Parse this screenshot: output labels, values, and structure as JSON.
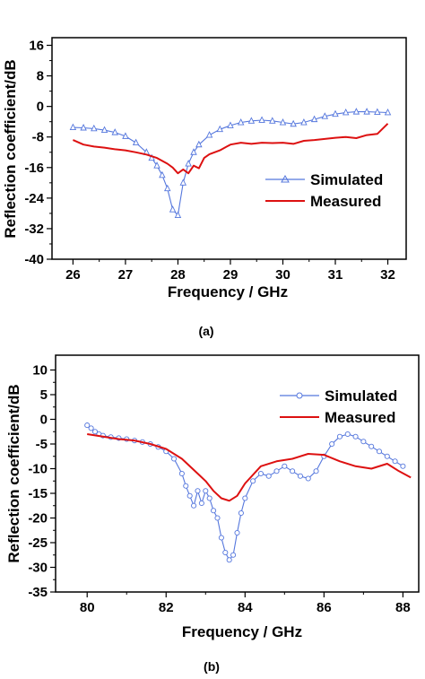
{
  "chart_data": [
    {
      "type": "line",
      "caption": "(a)",
      "xlabel": "Frequency / GHz",
      "ylabel": "Reflection coefficient/dB",
      "xlim": [
        25.6,
        32.35
      ],
      "ylim": [
        -40,
        18
      ],
      "xticks": [
        26,
        27,
        28,
        29,
        30,
        31,
        32
      ],
      "yticks": [
        -40,
        -32,
        -24,
        -16,
        -8,
        0,
        8,
        16
      ],
      "grid": false,
      "legend_position": "center-right",
      "series": [
        {
          "name": "Simulated",
          "color": "#5577dd",
          "marker": "triangle",
          "x": [
            26.0,
            26.2,
            26.4,
            26.6,
            26.8,
            27.0,
            27.2,
            27.4,
            27.5,
            27.6,
            27.7,
            27.8,
            27.9,
            28.0,
            28.1,
            28.2,
            28.3,
            28.4,
            28.6,
            28.8,
            29.0,
            29.2,
            29.4,
            29.6,
            29.8,
            30.0,
            30.2,
            30.4,
            30.6,
            30.8,
            31.0,
            31.2,
            31.4,
            31.6,
            31.8,
            32.0
          ],
          "y": [
            -5.5,
            -5.6,
            -5.8,
            -6.2,
            -6.8,
            -7.8,
            -9.5,
            -12.0,
            -13.5,
            -15.5,
            -18.0,
            -21.5,
            -27.0,
            -28.5,
            -20.0,
            -15.0,
            -12.0,
            -10.0,
            -7.5,
            -6.0,
            -5.0,
            -4.2,
            -3.8,
            -3.6,
            -3.8,
            -4.2,
            -4.6,
            -4.2,
            -3.4,
            -2.6,
            -2.0,
            -1.6,
            -1.4,
            -1.4,
            -1.5,
            -1.6
          ]
        },
        {
          "name": "Measured",
          "color": "#dd1111",
          "marker": "none",
          "x": [
            26.0,
            26.2,
            26.4,
            26.6,
            26.8,
            27.0,
            27.2,
            27.4,
            27.6,
            27.8,
            27.9,
            28.0,
            28.1,
            28.2,
            28.3,
            28.4,
            28.5,
            28.6,
            28.8,
            29.0,
            29.2,
            29.4,
            29.6,
            29.8,
            30.0,
            30.2,
            30.4,
            30.6,
            30.8,
            31.0,
            31.2,
            31.4,
            31.6,
            31.8,
            32.0
          ],
          "y": [
            -8.8,
            -10.0,
            -10.5,
            -10.8,
            -11.2,
            -11.5,
            -12.0,
            -12.6,
            -13.5,
            -15.0,
            -16.0,
            -17.5,
            -16.5,
            -17.5,
            -15.5,
            -16.2,
            -13.5,
            -12.5,
            -11.5,
            -10.0,
            -9.5,
            -9.8,
            -9.5,
            -9.6,
            -9.5,
            -9.8,
            -9.0,
            -8.8,
            -8.5,
            -8.2,
            -8.0,
            -8.3,
            -7.5,
            -7.2,
            -4.5
          ]
        }
      ]
    },
    {
      "type": "line",
      "caption": "(b)",
      "xlabel": "Frequency / GHz",
      "ylabel": "Reflection coefficient/dB",
      "xlim": [
        79.2,
        88.4
      ],
      "ylim": [
        -35,
        13
      ],
      "xticks": [
        80,
        82,
        84,
        86,
        88
      ],
      "yticks": [
        -35,
        -30,
        -25,
        -20,
        -15,
        -10,
        -5,
        0,
        5,
        10
      ],
      "grid": false,
      "legend_position": "top-right",
      "series": [
        {
          "name": "Simulated",
          "color": "#5577dd",
          "marker": "circle",
          "x": [
            80.0,
            80.1,
            80.2,
            80.3,
            80.4,
            80.6,
            80.8,
            81.0,
            81.2,
            81.4,
            81.6,
            81.8,
            82.0,
            82.2,
            82.4,
            82.5,
            82.6,
            82.7,
            82.8,
            82.9,
            83.0,
            83.1,
            83.2,
            83.3,
            83.4,
            83.5,
            83.6,
            83.7,
            83.8,
            83.9,
            84.0,
            84.2,
            84.4,
            84.6,
            84.8,
            85.0,
            85.2,
            85.4,
            85.6,
            85.8,
            86.0,
            86.2,
            86.4,
            86.6,
            86.8,
            87.0,
            87.2,
            87.4,
            87.6,
            87.8,
            88.0
          ],
          "y": [
            -1.2,
            -1.8,
            -2.5,
            -3.0,
            -3.3,
            -3.6,
            -3.8,
            -4.0,
            -4.3,
            -4.6,
            -5.0,
            -5.6,
            -6.5,
            -8.0,
            -11.0,
            -13.5,
            -15.5,
            -17.5,
            -14.5,
            -17.0,
            -14.5,
            -16.0,
            -18.5,
            -20.0,
            -24.0,
            -27.0,
            -28.5,
            -27.5,
            -23.0,
            -19.0,
            -16.0,
            -12.5,
            -11.0,
            -11.5,
            -10.5,
            -9.5,
            -10.5,
            -11.5,
            -12.0,
            -10.5,
            -7.5,
            -5.0,
            -3.5,
            -3.0,
            -3.5,
            -4.5,
            -5.5,
            -6.5,
            -7.5,
            -8.5,
            -9.5
          ]
        },
        {
          "name": "Measured",
          "color": "#dd1111",
          "marker": "none",
          "x": [
            80.0,
            80.4,
            80.8,
            81.2,
            81.6,
            82.0,
            82.4,
            82.8,
            83.0,
            83.2,
            83.4,
            83.6,
            83.8,
            84.0,
            84.4,
            84.8,
            85.2,
            85.6,
            86.0,
            86.4,
            86.8,
            87.2,
            87.6,
            87.9,
            88.2
          ],
          "y": [
            -3.0,
            -3.5,
            -4.0,
            -4.3,
            -5.0,
            -6.0,
            -8.0,
            -11.0,
            -12.5,
            -14.5,
            -16.0,
            -16.5,
            -15.5,
            -13.0,
            -9.5,
            -8.5,
            -8.0,
            -7.0,
            -7.2,
            -8.5,
            -9.5,
            -10.0,
            -9.0,
            -10.5,
            -11.8
          ]
        }
      ]
    }
  ]
}
